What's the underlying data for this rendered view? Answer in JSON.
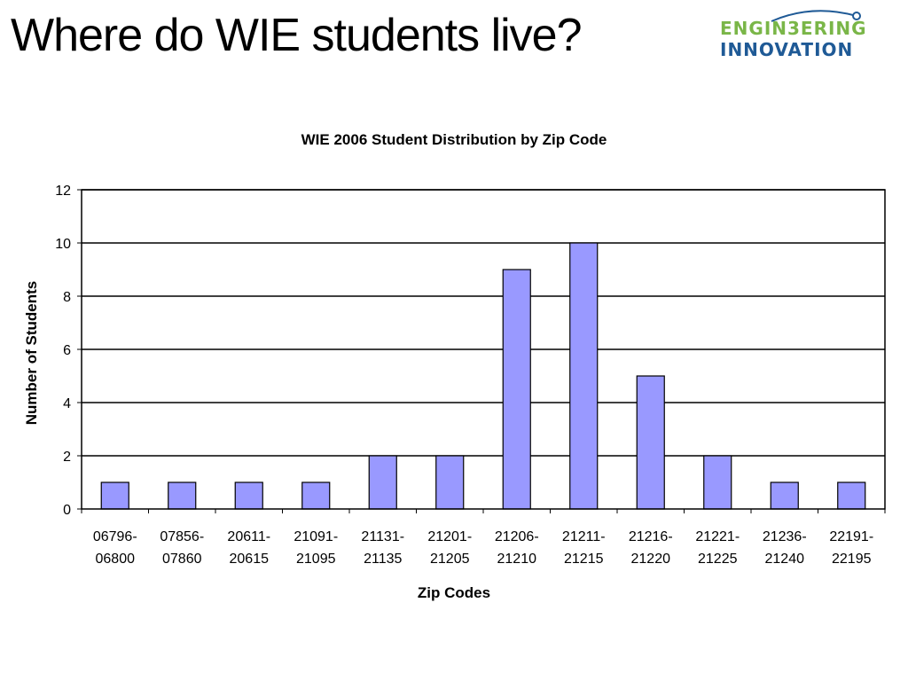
{
  "slide": {
    "title": "Where do WIE students live?"
  },
  "logo": {
    "line1": "ENGIN3ERING",
    "line2": "INNOVATION",
    "green": "#7ab648",
    "blue": "#1f5a96"
  },
  "chart_data": {
    "type": "bar",
    "title": "WIE 2006 Student Distribution by Zip Code",
    "xlabel": "Zip Codes",
    "ylabel": "Number of Students",
    "categories": [
      [
        "06796-",
        "06800"
      ],
      [
        "07856-",
        "07860"
      ],
      [
        "20611-",
        "20615"
      ],
      [
        "21091-",
        "21095"
      ],
      [
        "21131-",
        "21135"
      ],
      [
        "21201-",
        "21205"
      ],
      [
        "21206-",
        "21210"
      ],
      [
        "21211-",
        "21215"
      ],
      [
        "21216-",
        "21220"
      ],
      [
        "21221-",
        "21225"
      ],
      [
        "21236-",
        "21240"
      ],
      [
        "22191-",
        "22195"
      ]
    ],
    "values": [
      1,
      1,
      1,
      1,
      2,
      2,
      9,
      10,
      5,
      2,
      1,
      1
    ],
    "ylim": [
      0,
      12
    ],
    "yticks": [
      0,
      2,
      4,
      6,
      8,
      10,
      12
    ],
    "grid": true,
    "bar_color": "#9999ff"
  }
}
